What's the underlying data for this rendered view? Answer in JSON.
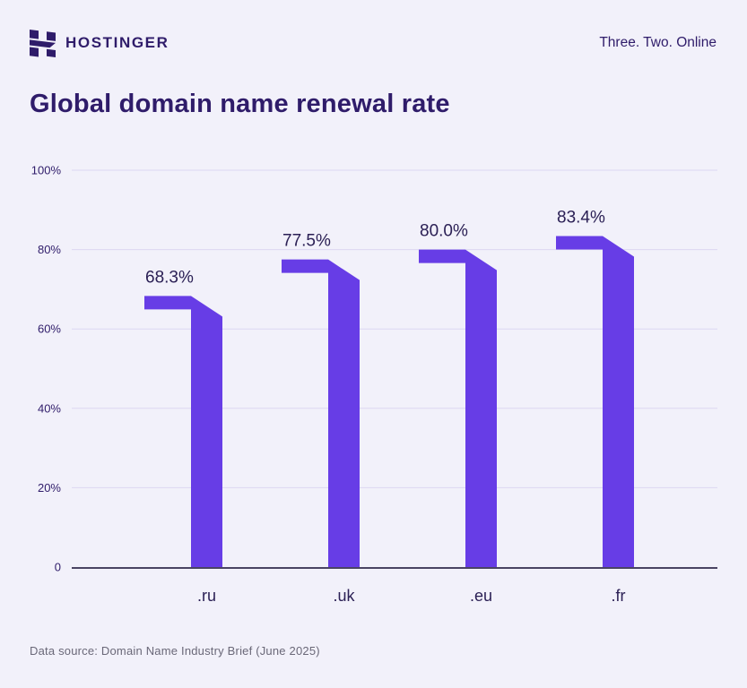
{
  "header": {
    "brand": "HOSTINGER",
    "tagline": "Three. Two. Online"
  },
  "chart_data": {
    "type": "bar",
    "title": "Global domain name renewal rate",
    "categories": [
      ".ru",
      ".uk",
      ".eu",
      ".fr"
    ],
    "values": [
      68.3,
      77.5,
      80.0,
      83.4
    ],
    "value_labels": [
      "68.3%",
      "77.5%",
      "80.0%",
      "83.4%"
    ],
    "yticks": [
      0,
      20,
      40,
      60,
      80,
      100
    ],
    "ytick_labels": [
      "0",
      "20%",
      "40%",
      "60%",
      "80%",
      "100%"
    ],
    "ylim": [
      0,
      100
    ],
    "xlabel": "",
    "ylabel": "",
    "grid": true,
    "legend": "none",
    "bar_color": "#673DE6",
    "grid_color": "#DCD7F1",
    "axis_color": "#4A4463",
    "label_color": "#2B2055",
    "tick_color": "#2F1C6A"
  },
  "colors": {
    "background": "#F2F1FA",
    "brand_dark": "#2F1C6A",
    "accent_purple": "#673DE6"
  },
  "footer": {
    "source": "Data source: Domain Name Industry Brief (June 2025)"
  }
}
